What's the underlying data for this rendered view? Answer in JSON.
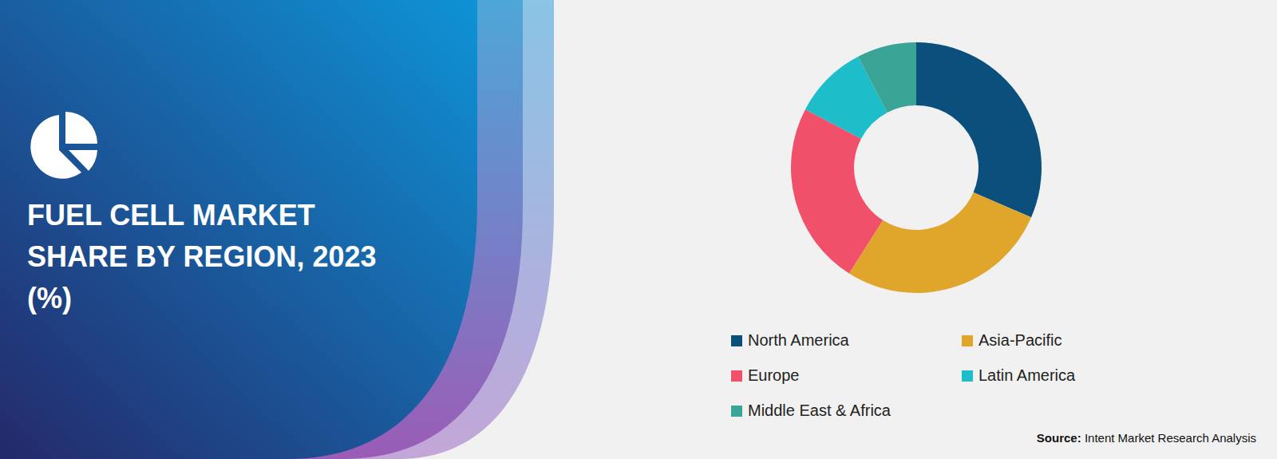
{
  "chart_data": {
    "type": "donut",
    "title": "FUEL CELL MARKET SHARE BY REGION, 2023 (%)",
    "categories": [
      "North America",
      "Asia-Pacific",
      "Europe",
      "Latin America",
      "Middle East & Africa"
    ],
    "values": [
      31.5,
      27.5,
      23.7,
      9.6,
      7.7
    ],
    "colors": [
      "#0b4f7c",
      "#e0a52b",
      "#f0506a",
      "#1dbdc9",
      "#3aa597"
    ],
    "legend": "bottom",
    "source_label": "Source:",
    "source": "Intent Market Research Analysis"
  }
}
